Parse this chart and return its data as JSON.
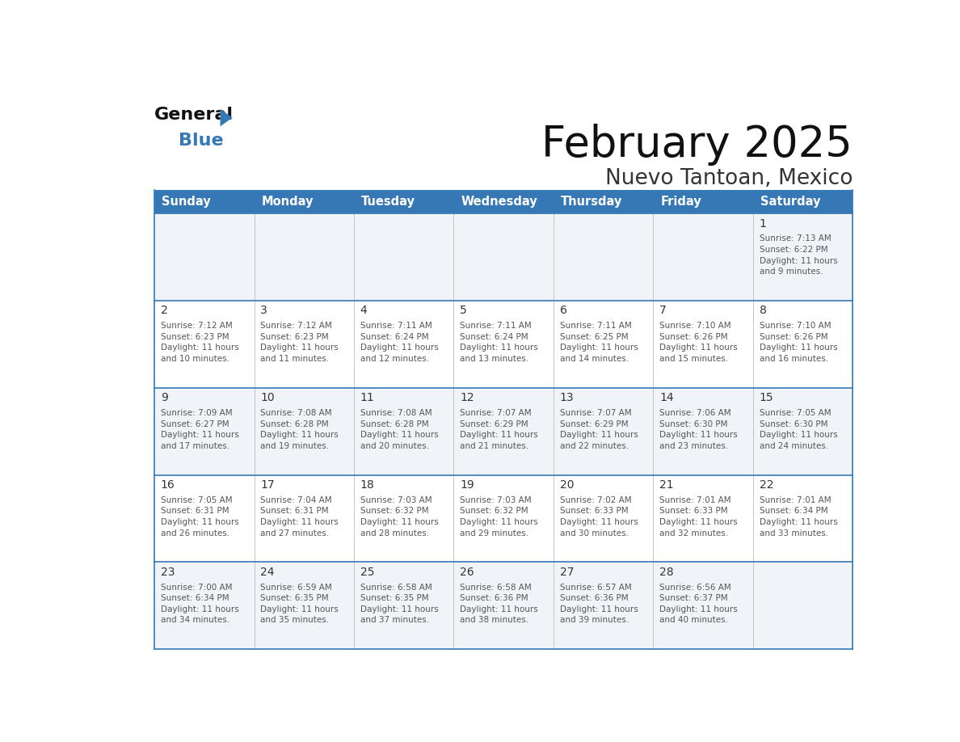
{
  "title": "February 2025",
  "subtitle": "Nuevo Tantoan, Mexico",
  "header_color": "#3578b5",
  "header_text_color": "#ffffff",
  "row_bg_light": "#f0f4f8",
  "row_bg_white": "#ffffff",
  "days_of_week": [
    "Sunday",
    "Monday",
    "Tuesday",
    "Wednesday",
    "Thursday",
    "Friday",
    "Saturday"
  ],
  "calendar": [
    [
      null,
      null,
      null,
      null,
      null,
      null,
      {
        "day": "1",
        "sunrise": "7:13 AM",
        "sunset": "6:22 PM",
        "daylight": "11 hours\nand 9 minutes."
      }
    ],
    [
      {
        "day": "2",
        "sunrise": "7:12 AM",
        "sunset": "6:23 PM",
        "daylight": "11 hours\nand 10 minutes."
      },
      {
        "day": "3",
        "sunrise": "7:12 AM",
        "sunset": "6:23 PM",
        "daylight": "11 hours\nand 11 minutes."
      },
      {
        "day": "4",
        "sunrise": "7:11 AM",
        "sunset": "6:24 PM",
        "daylight": "11 hours\nand 12 minutes."
      },
      {
        "day": "5",
        "sunrise": "7:11 AM",
        "sunset": "6:24 PM",
        "daylight": "11 hours\nand 13 minutes."
      },
      {
        "day": "6",
        "sunrise": "7:11 AM",
        "sunset": "6:25 PM",
        "daylight": "11 hours\nand 14 minutes."
      },
      {
        "day": "7",
        "sunrise": "7:10 AM",
        "sunset": "6:26 PM",
        "daylight": "11 hours\nand 15 minutes."
      },
      {
        "day": "8",
        "sunrise": "7:10 AM",
        "sunset": "6:26 PM",
        "daylight": "11 hours\nand 16 minutes."
      }
    ],
    [
      {
        "day": "9",
        "sunrise": "7:09 AM",
        "sunset": "6:27 PM",
        "daylight": "11 hours\nand 17 minutes."
      },
      {
        "day": "10",
        "sunrise": "7:08 AM",
        "sunset": "6:28 PM",
        "daylight": "11 hours\nand 19 minutes."
      },
      {
        "day": "11",
        "sunrise": "7:08 AM",
        "sunset": "6:28 PM",
        "daylight": "11 hours\nand 20 minutes."
      },
      {
        "day": "12",
        "sunrise": "7:07 AM",
        "sunset": "6:29 PM",
        "daylight": "11 hours\nand 21 minutes."
      },
      {
        "day": "13",
        "sunrise": "7:07 AM",
        "sunset": "6:29 PM",
        "daylight": "11 hours\nand 22 minutes."
      },
      {
        "day": "14",
        "sunrise": "7:06 AM",
        "sunset": "6:30 PM",
        "daylight": "11 hours\nand 23 minutes."
      },
      {
        "day": "15",
        "sunrise": "7:05 AM",
        "sunset": "6:30 PM",
        "daylight": "11 hours\nand 24 minutes."
      }
    ],
    [
      {
        "day": "16",
        "sunrise": "7:05 AM",
        "sunset": "6:31 PM",
        "daylight": "11 hours\nand 26 minutes."
      },
      {
        "day": "17",
        "sunrise": "7:04 AM",
        "sunset": "6:31 PM",
        "daylight": "11 hours\nand 27 minutes."
      },
      {
        "day": "18",
        "sunrise": "7:03 AM",
        "sunset": "6:32 PM",
        "daylight": "11 hours\nand 28 minutes."
      },
      {
        "day": "19",
        "sunrise": "7:03 AM",
        "sunset": "6:32 PM",
        "daylight": "11 hours\nand 29 minutes."
      },
      {
        "day": "20",
        "sunrise": "7:02 AM",
        "sunset": "6:33 PM",
        "daylight": "11 hours\nand 30 minutes."
      },
      {
        "day": "21",
        "sunrise": "7:01 AM",
        "sunset": "6:33 PM",
        "daylight": "11 hours\nand 32 minutes."
      },
      {
        "day": "22",
        "sunrise": "7:01 AM",
        "sunset": "6:34 PM",
        "daylight": "11 hours\nand 33 minutes."
      }
    ],
    [
      {
        "day": "23",
        "sunrise": "7:00 AM",
        "sunset": "6:34 PM",
        "daylight": "11 hours\nand 34 minutes."
      },
      {
        "day": "24",
        "sunrise": "6:59 AM",
        "sunset": "6:35 PM",
        "daylight": "11 hours\nand 35 minutes."
      },
      {
        "day": "25",
        "sunrise": "6:58 AM",
        "sunset": "6:35 PM",
        "daylight": "11 hours\nand 37 minutes."
      },
      {
        "day": "26",
        "sunrise": "6:58 AM",
        "sunset": "6:36 PM",
        "daylight": "11 hours\nand 38 minutes."
      },
      {
        "day": "27",
        "sunrise": "6:57 AM",
        "sunset": "6:36 PM",
        "daylight": "11 hours\nand 39 minutes."
      },
      {
        "day": "28",
        "sunrise": "6:56 AM",
        "sunset": "6:37 PM",
        "daylight": "11 hours\nand 40 minutes."
      },
      null
    ]
  ],
  "border_color": "#3578b5",
  "day_number_color": "#333333",
  "text_color": "#555555",
  "logo_general_color": "#111111",
  "logo_blue_color": "#3578b5",
  "logo_triangle_color": "#3578b5"
}
